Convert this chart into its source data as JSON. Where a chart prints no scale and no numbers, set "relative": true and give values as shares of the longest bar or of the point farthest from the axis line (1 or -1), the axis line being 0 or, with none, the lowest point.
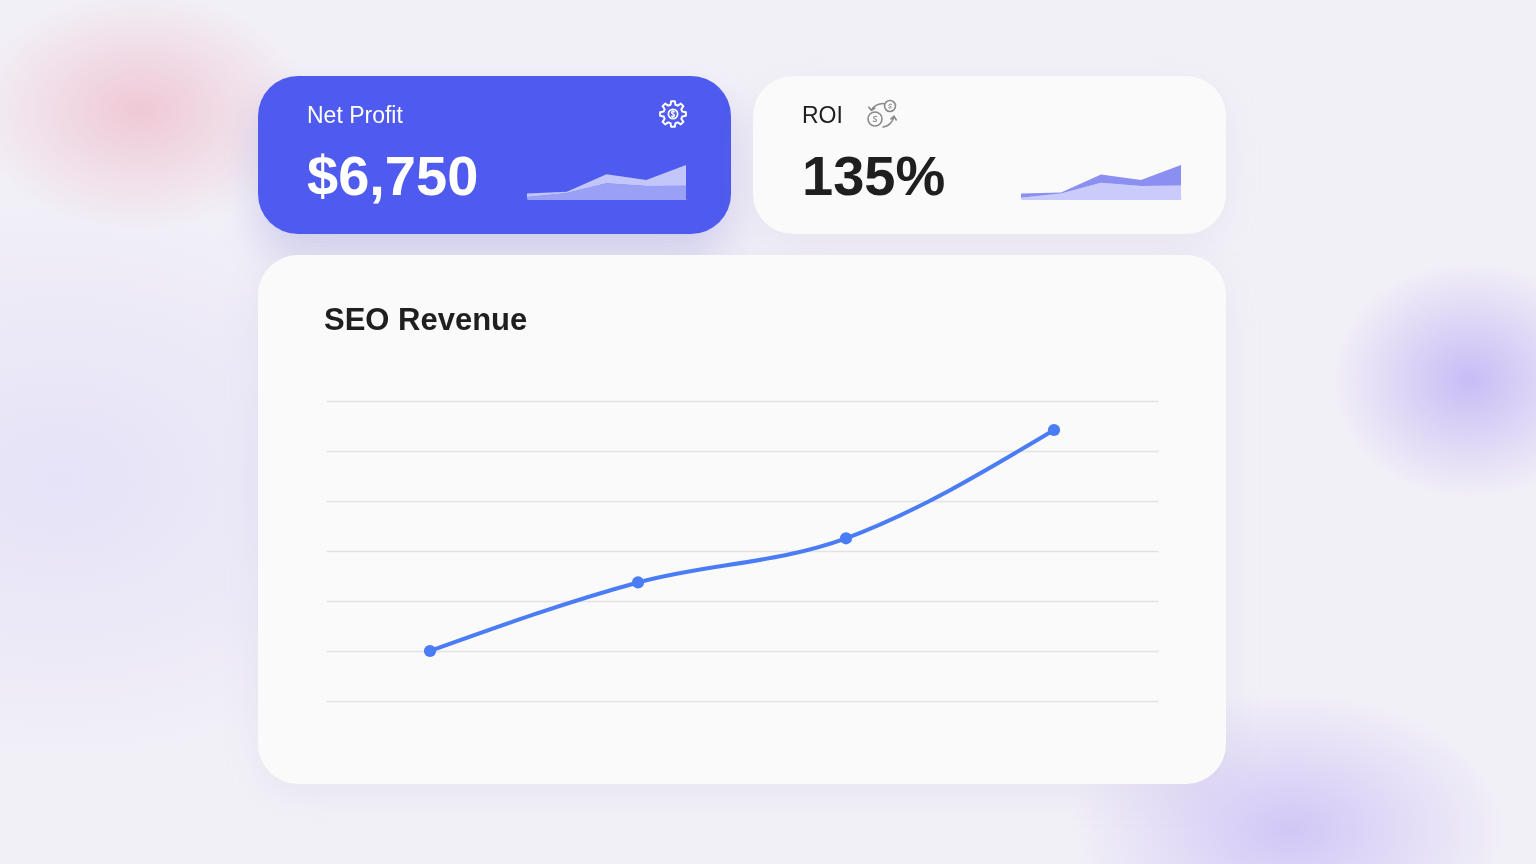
{
  "chart_data": [
    {
      "type": "other",
      "title": "Net Profit",
      "annotations": [
        "$6,750"
      ]
    },
    {
      "type": "area",
      "relative": true,
      "stacked": true,
      "categories": [
        null,
        null,
        null,
        null,
        null
      ],
      "series": [
        {
          "color": "#9aa0f6",
          "values": [
            0.06,
            0.18,
            0.46,
            0.38,
            0.39
          ]
        },
        {
          "color": "#c3c6fa",
          "values": [
            0.1,
            0.03,
            0.27,
            0.18,
            0.61
          ]
        }
      ]
    },
    {
      "type": "other",
      "title": "ROI",
      "annotations": [
        "135%"
      ]
    },
    {
      "type": "area",
      "relative": true,
      "stacked": true,
      "categories": [
        null,
        null,
        null,
        null,
        null
      ],
      "series": [
        {
          "color": "#c9ccfa",
          "values": [
            0.04,
            0.16,
            0.48,
            0.38,
            0.4
          ]
        },
        {
          "color": "#8b8ff1",
          "values": [
            0.12,
            0.03,
            0.24,
            0.18,
            0.6
          ]
        }
      ]
    },
    {
      "type": "line",
      "title": "SEO Revenue",
      "relative": true,
      "categories": [
        null,
        null,
        null,
        null
      ],
      "series": [
        {
          "color": "#4a7cf5",
          "values": [
            0,
            0.31,
            0.51,
            1
          ]
        }
      ],
      "grid": "y",
      "marker": "circle",
      "line_style": "solid"
    }
  ]
}
